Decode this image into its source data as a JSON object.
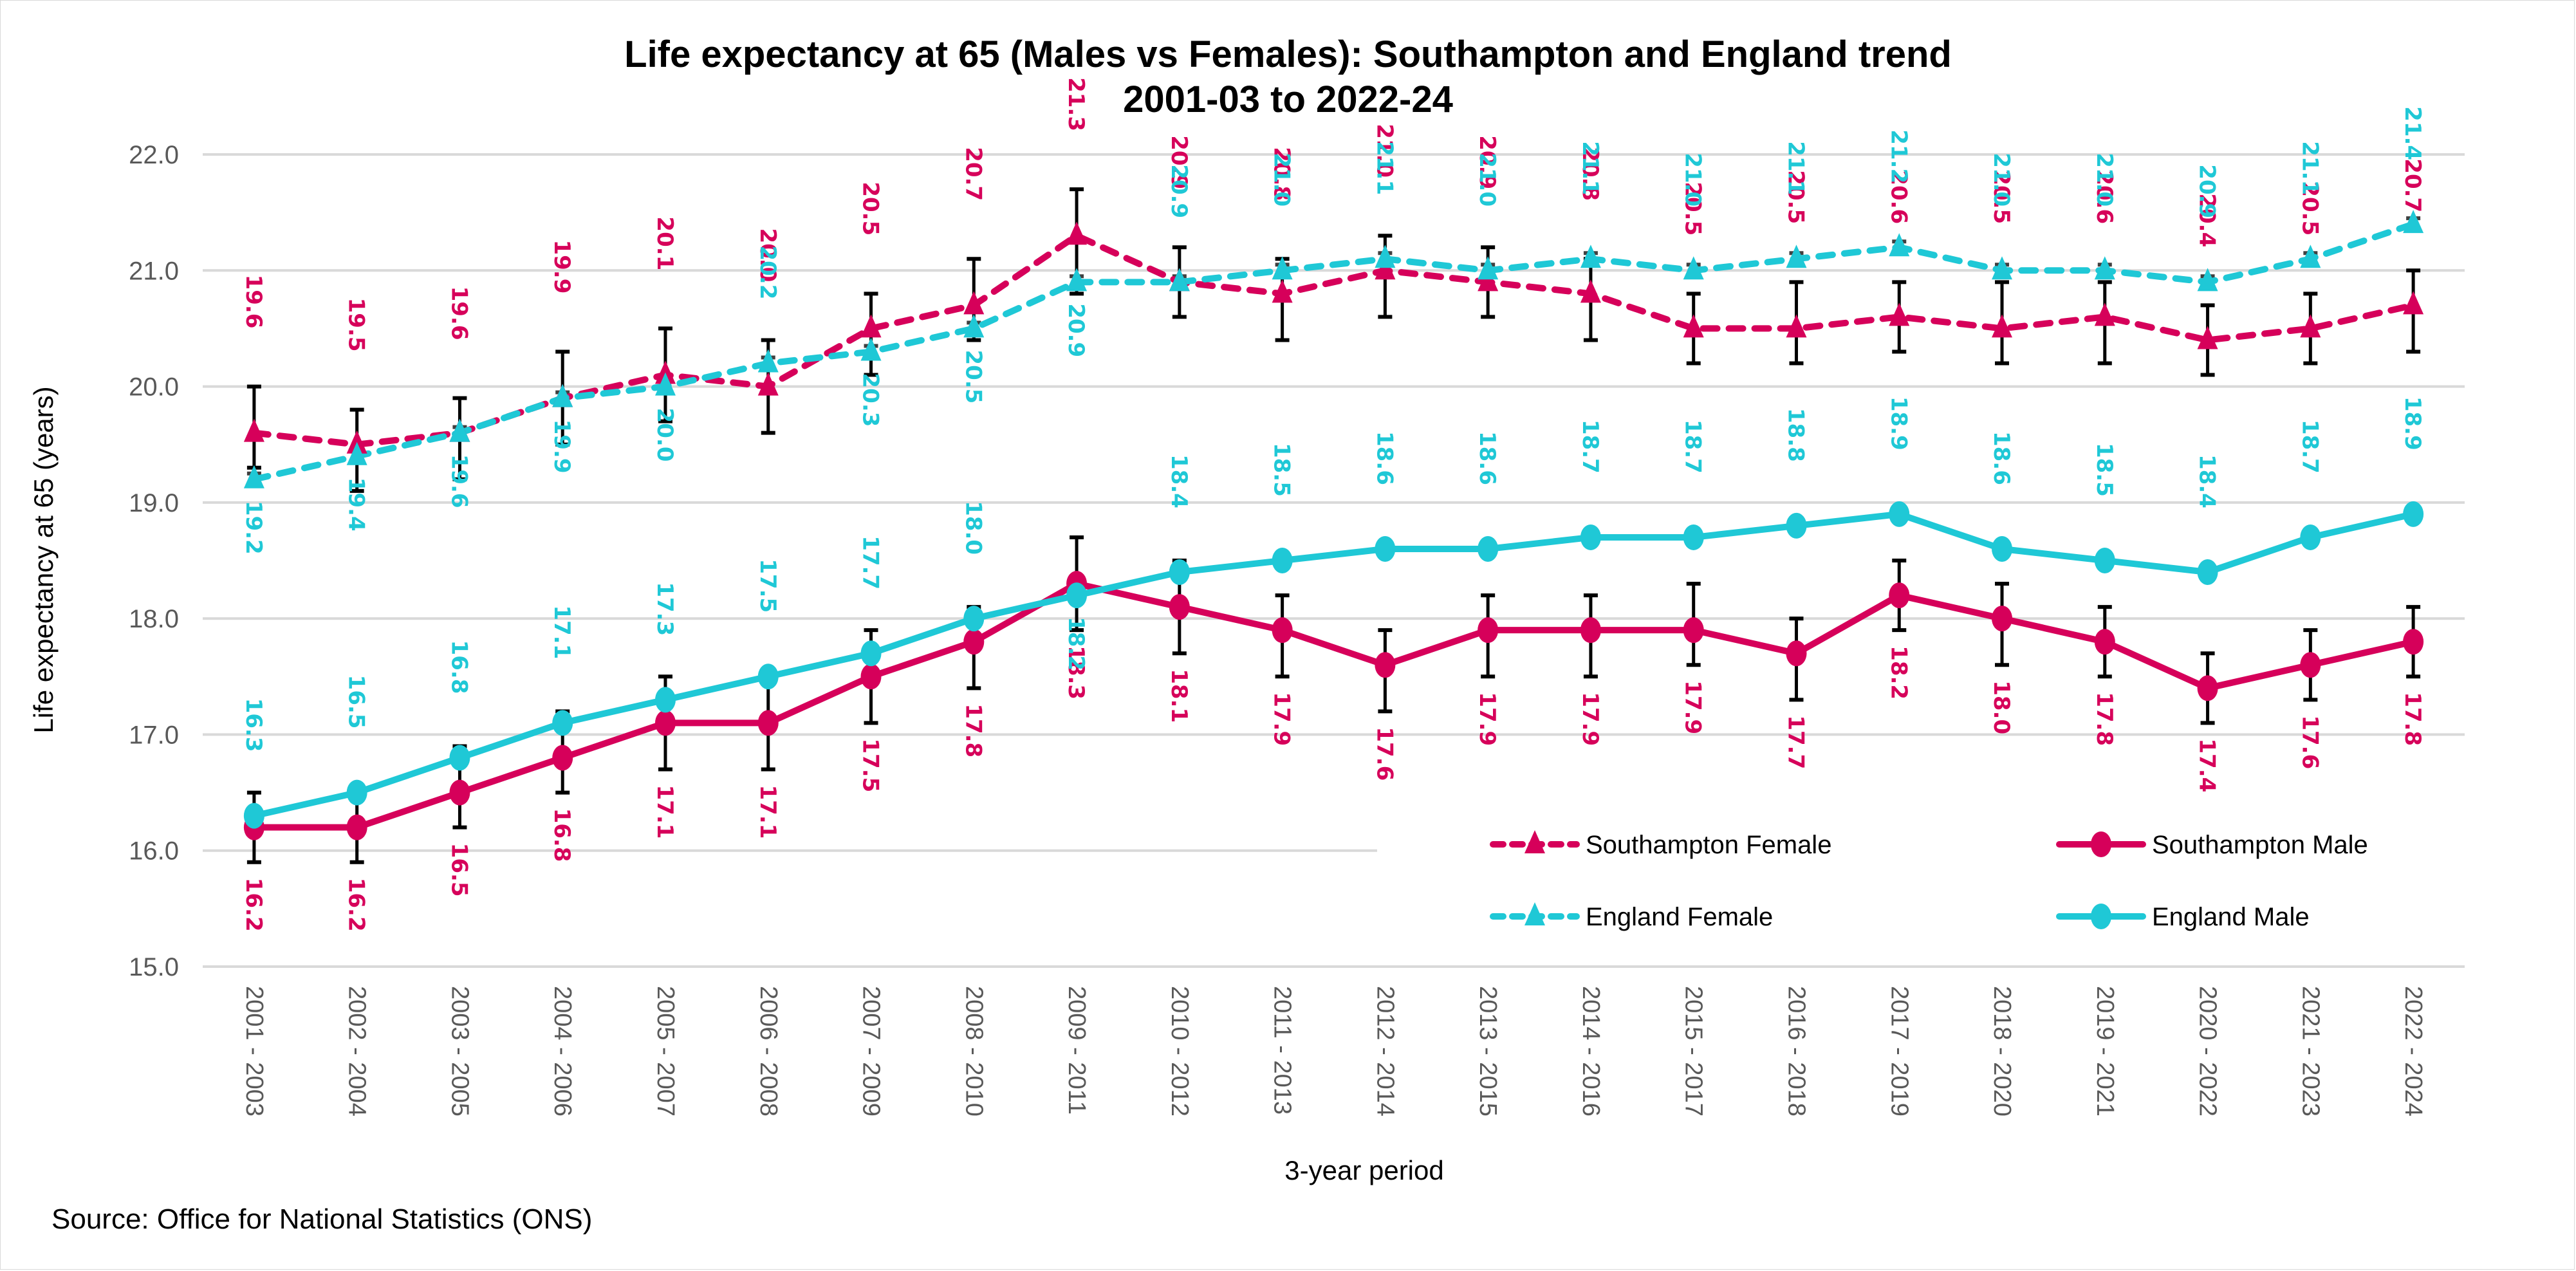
{
  "chart_data": {
    "type": "line",
    "title": "Life expectancy at 65 (Males vs Females): Southampton and England trend",
    "subtitle": "2001-03 to 2022-24",
    "xlabel": "3-year period",
    "ylabel": "Life expectancy at 65 (years)",
    "ylim": [
      15.0,
      22.0
    ],
    "yticks": [
      "15.0",
      "16.0",
      "17.0",
      "18.0",
      "19.0",
      "20.0",
      "21.0",
      "22.0"
    ],
    "grid": true,
    "legend_position": "bottom-right-inside",
    "source": "Source: Office for National Statistics (ONS)",
    "categories": [
      "2001 - 2003",
      "2002 - 2004",
      "2003 - 2005",
      "2004 - 2006",
      "2005 - 2007",
      "2006 - 2008",
      "2007 - 2009",
      "2008 - 2010",
      "2009 - 2011",
      "2010 - 2012",
      "2011 - 2013",
      "2012 - 2014",
      "2013 - 2015",
      "2014 - 2016",
      "2015 - 2017",
      "2016 - 2018",
      "2017 - 2019",
      "2018 - 2020",
      "2019 - 2021",
      "2020 - 2022",
      "2021 - 2023",
      "2022 - 2024"
    ],
    "series": [
      {
        "name": "Southampton Female",
        "color": "#d6005a",
        "style": "dashed",
        "marker": "triangle",
        "label_position": "above",
        "values": [
          19.6,
          19.5,
          19.6,
          19.9,
          20.1,
          20.0,
          20.5,
          20.7,
          21.3,
          20.9,
          20.8,
          21.0,
          20.9,
          20.8,
          20.5,
          20.5,
          20.6,
          20.5,
          20.6,
          20.4,
          20.5,
          20.7
        ],
        "ci_lower": [
          19.3,
          19.1,
          19.2,
          19.5,
          19.7,
          19.6,
          20.1,
          20.4,
          20.8,
          20.6,
          20.4,
          20.6,
          20.6,
          20.4,
          20.2,
          20.2,
          20.3,
          20.2,
          20.2,
          20.1,
          20.2,
          20.3
        ],
        "ci_upper": [
          20.0,
          19.8,
          19.9,
          20.3,
          20.5,
          20.4,
          20.8,
          21.1,
          21.7,
          21.2,
          21.1,
          21.3,
          21.2,
          21.1,
          20.8,
          20.9,
          20.9,
          20.9,
          20.9,
          20.7,
          20.8,
          21.0
        ]
      },
      {
        "name": "Southampton Male",
        "color": "#d6005a",
        "style": "solid",
        "marker": "circle",
        "label_position": "below",
        "values": [
          16.2,
          16.2,
          16.5,
          16.8,
          17.1,
          17.1,
          17.5,
          17.8,
          18.3,
          18.1,
          17.9,
          17.6,
          17.9,
          17.9,
          17.9,
          17.7,
          18.2,
          18.0,
          17.8,
          17.4,
          17.6,
          17.8
        ],
        "ci_lower": [
          15.9,
          15.9,
          16.2,
          16.5,
          16.7,
          16.7,
          17.1,
          17.4,
          17.9,
          17.7,
          17.5,
          17.2,
          17.5,
          17.5,
          17.6,
          17.3,
          17.9,
          17.6,
          17.5,
          17.1,
          17.3,
          17.5
        ],
        "ci_upper": [
          16.5,
          16.5,
          16.9,
          17.2,
          17.5,
          17.5,
          17.9,
          18.1,
          18.7,
          18.5,
          18.2,
          17.9,
          18.2,
          18.2,
          18.3,
          18.0,
          18.5,
          18.3,
          18.1,
          17.7,
          17.9,
          18.1
        ]
      },
      {
        "name": "England Female",
        "color": "#1fc8d6",
        "style": "dashed",
        "marker": "triangle",
        "label_position": "mixed",
        "values": [
          19.2,
          19.4,
          19.6,
          19.9,
          20.0,
          20.2,
          20.3,
          20.5,
          20.9,
          20.9,
          21.0,
          21.1,
          21.0,
          21.1,
          21.0,
          21.1,
          21.2,
          21.0,
          21.0,
          20.9,
          21.1,
          21.4
        ],
        "ci_lower": [
          19.15,
          19.35,
          19.55,
          19.85,
          19.95,
          20.15,
          20.25,
          20.45,
          20.85,
          20.85,
          20.95,
          21.05,
          20.95,
          21.05,
          20.95,
          21.05,
          21.15,
          20.95,
          20.95,
          20.85,
          21.05,
          21.35
        ],
        "ci_upper": [
          19.25,
          19.45,
          19.65,
          19.95,
          20.05,
          20.25,
          20.35,
          20.55,
          20.95,
          20.95,
          21.05,
          21.15,
          21.05,
          21.15,
          21.05,
          21.15,
          21.25,
          21.05,
          21.05,
          20.95,
          21.15,
          21.45
        ]
      },
      {
        "name": "England Male",
        "color": "#1fc8d6",
        "style": "solid",
        "marker": "circle",
        "label_position": "mixed",
        "values": [
          16.3,
          16.5,
          16.8,
          17.1,
          17.3,
          17.5,
          17.7,
          18.0,
          18.2,
          18.4,
          18.5,
          18.6,
          18.6,
          18.7,
          18.7,
          18.8,
          18.9,
          18.6,
          18.5,
          18.4,
          18.7,
          18.9
        ],
        "ci_lower": [
          16.25,
          16.45,
          16.75,
          17.05,
          17.25,
          17.45,
          17.65,
          17.95,
          18.15,
          18.35,
          18.45,
          18.55,
          18.55,
          18.65,
          18.65,
          18.75,
          18.85,
          18.55,
          18.45,
          18.35,
          18.65,
          18.85
        ],
        "ci_upper": [
          16.35,
          16.55,
          16.85,
          17.15,
          17.35,
          17.55,
          17.75,
          18.05,
          18.25,
          18.45,
          18.55,
          18.65,
          18.65,
          18.75,
          18.75,
          18.85,
          18.95,
          18.65,
          18.55,
          18.45,
          18.75,
          18.95
        ]
      }
    ],
    "england_female_label_below_indices": [
      0,
      1,
      2,
      3,
      4,
      6,
      7,
      8
    ],
    "england_male_label_below_indices": [
      8
    ]
  }
}
